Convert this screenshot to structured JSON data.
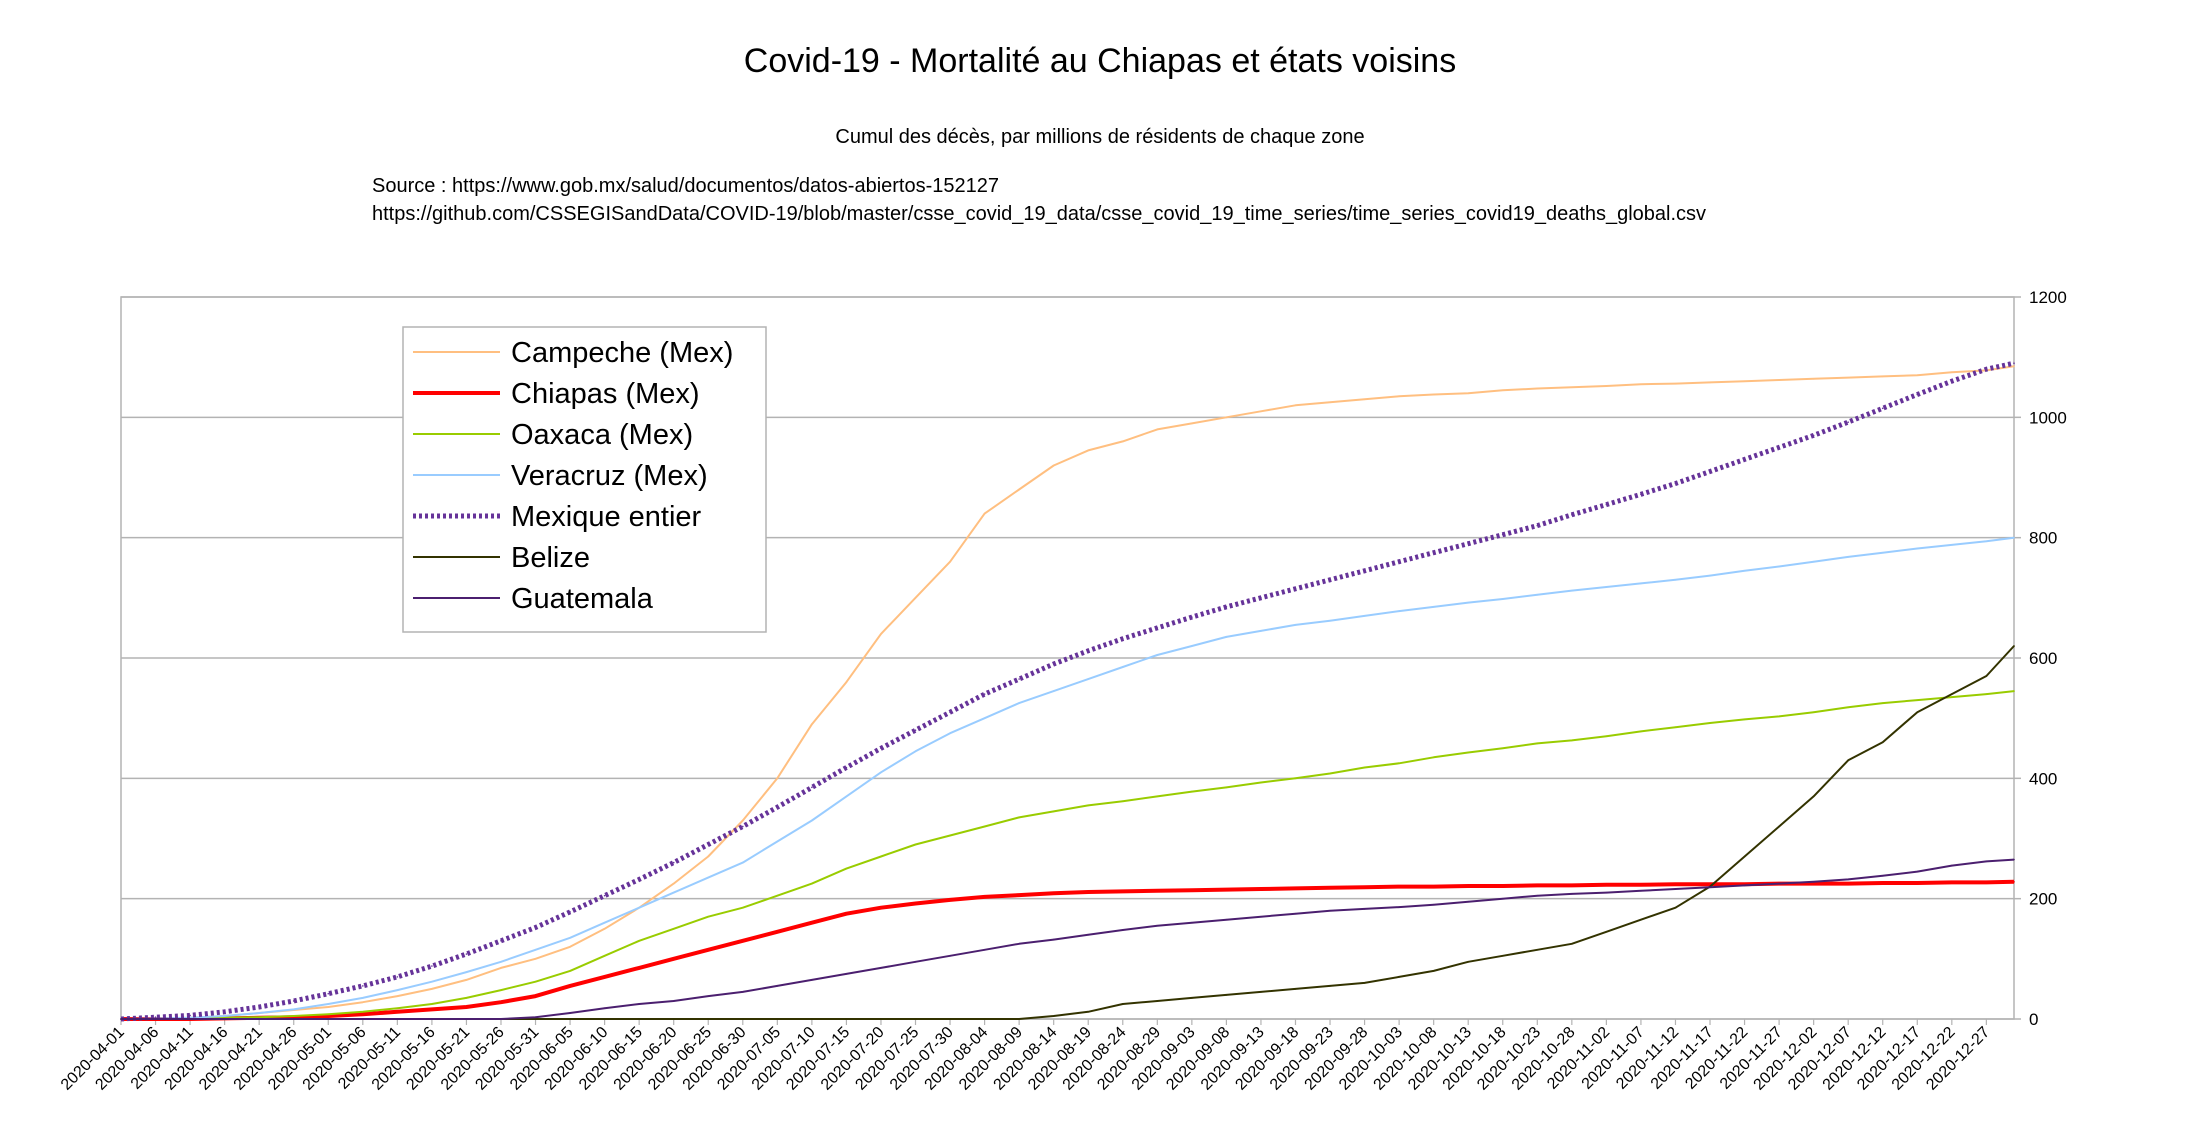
{
  "chart_data": {
    "type": "line",
    "title": "Covid-19 - Mortalité au Chiapas et états voisins",
    "subtitle": "Cumul des décès, par millions de résidents de chaque zone",
    "source_lines": [
      "Source : https://www.gob.mx/salud/documentos/datos-abiertos-152127",
      "https://github.com/CSSEGISandData/COVID-19/blob/master/csse_covid_19_data/csse_covid_19_time_series/time_series_covid19_deaths_global.csv"
    ],
    "xlabel": "",
    "ylabel": "",
    "ylim": [
      0,
      1200
    ],
    "y_ticks": [
      0,
      200,
      400,
      600,
      800,
      1000,
      1200
    ],
    "y_axis_side": "right",
    "grid": true,
    "legend_position": "top-left",
    "x_tick_labels": [
      "2020-04-01",
      "2020-04-06",
      "2020-04-11",
      "2020-04-16",
      "2020-04-21",
      "2020-04-26",
      "2020-05-01",
      "2020-05-06",
      "2020-05-11",
      "2020-05-16",
      "2020-05-21",
      "2020-05-26",
      "2020-05-31",
      "2020-06-05",
      "2020-06-10",
      "2020-06-15",
      "2020-06-20",
      "2020-06-25",
      "2020-06-30",
      "2020-07-05",
      "2020-07-10",
      "2020-07-15",
      "2020-07-20",
      "2020-07-25",
      "2020-07-30",
      "2020-08-04",
      "2020-08-09",
      "2020-08-14",
      "2020-08-19",
      "2020-08-24",
      "2020-08-29",
      "2020-09-03",
      "2020-09-08",
      "2020-09-13",
      "2020-09-18",
      "2020-09-23",
      "2020-09-28",
      "2020-10-03",
      "2020-10-08",
      "2020-10-13",
      "2020-10-18",
      "2020-10-23",
      "2020-10-28",
      "2020-11-02",
      "2020-11-07",
      "2020-11-12",
      "2020-11-17",
      "2020-11-22",
      "2020-11-27",
      "2020-12-02",
      "2020-12-07",
      "2020-12-12",
      "2020-12-17",
      "2020-12-22",
      "2020-12-27"
    ],
    "x": [
      "2020-04-01",
      "2020-04-06",
      "2020-04-11",
      "2020-04-16",
      "2020-04-21",
      "2020-04-26",
      "2020-05-01",
      "2020-05-06",
      "2020-05-11",
      "2020-05-16",
      "2020-05-21",
      "2020-05-26",
      "2020-05-31",
      "2020-06-05",
      "2020-06-10",
      "2020-06-15",
      "2020-06-20",
      "2020-06-25",
      "2020-06-30",
      "2020-07-05",
      "2020-07-10",
      "2020-07-15",
      "2020-07-20",
      "2020-07-25",
      "2020-07-30",
      "2020-08-04",
      "2020-08-09",
      "2020-08-14",
      "2020-08-19",
      "2020-08-24",
      "2020-08-29",
      "2020-09-03",
      "2020-09-08",
      "2020-09-13",
      "2020-09-18",
      "2020-09-23",
      "2020-09-28",
      "2020-10-03",
      "2020-10-08",
      "2020-10-13",
      "2020-10-18",
      "2020-10-23",
      "2020-10-28",
      "2020-11-02",
      "2020-11-07",
      "2020-11-12",
      "2020-11-17",
      "2020-11-22",
      "2020-11-27",
      "2020-12-02",
      "2020-12-07",
      "2020-12-12",
      "2020-12-17",
      "2020-12-22",
      "2020-12-27",
      "2020-12-31"
    ],
    "series": [
      {
        "name": "Campeche (Mex)",
        "color": "#ffbf80",
        "width": 2,
        "dash": "",
        "values": [
          0,
          1,
          2,
          5,
          10,
          15,
          20,
          28,
          38,
          50,
          65,
          85,
          100,
          120,
          150,
          185,
          225,
          270,
          330,
          400,
          490,
          560,
          640,
          700,
          760,
          840,
          880,
          920,
          945,
          960,
          980,
          990,
          1000,
          1010,
          1020,
          1025,
          1030,
          1035,
          1038,
          1040,
          1045,
          1048,
          1050,
          1052,
          1055,
          1056,
          1058,
          1060,
          1062,
          1064,
          1066,
          1068,
          1070,
          1075,
          1078,
          1085
        ]
      },
      {
        "name": "Chiapas (Mex)",
        "color": "#ff0000",
        "width": 4,
        "dash": "",
        "values": [
          0,
          0,
          0,
          1,
          2,
          3,
          5,
          8,
          12,
          16,
          20,
          28,
          38,
          55,
          70,
          85,
          100,
          115,
          130,
          145,
          160,
          175,
          185,
          192,
          198,
          203,
          206,
          209,
          211,
          212,
          213,
          214,
          215,
          216,
          217,
          218,
          219,
          220,
          220,
          221,
          221,
          222,
          222,
          223,
          223,
          224,
          224,
          224,
          225,
          225,
          225,
          226,
          226,
          227,
          227,
          228
        ]
      },
      {
        "name": "Oaxaca (Mex)",
        "color": "#99cc00",
        "width": 2,
        "dash": "",
        "values": [
          0,
          0,
          1,
          2,
          3,
          5,
          8,
          12,
          18,
          25,
          35,
          48,
          62,
          80,
          105,
          130,
          150,
          170,
          185,
          205,
          225,
          250,
          270,
          290,
          305,
          320,
          335,
          345,
          355,
          362,
          370,
          378,
          385,
          393,
          400,
          408,
          418,
          425,
          435,
          443,
          450,
          458,
          463,
          470,
          478,
          485,
          492,
          498,
          503,
          510,
          518,
          525,
          530,
          535,
          540,
          545
        ]
      },
      {
        "name": "Veracruz (Mex)",
        "color": "#99ccff",
        "width": 2,
        "dash": "",
        "values": [
          0,
          1,
          2,
          5,
          10,
          16,
          25,
          35,
          48,
          62,
          78,
          95,
          115,
          135,
          160,
          185,
          210,
          235,
          260,
          295,
          330,
          370,
          410,
          445,
          475,
          500,
          525,
          545,
          565,
          585,
          605,
          620,
          635,
          645,
          655,
          662,
          670,
          678,
          685,
          692,
          698,
          705,
          712,
          718,
          724,
          730,
          737,
          745,
          752,
          760,
          768,
          775,
          782,
          788,
          794,
          800
        ]
      },
      {
        "name": "Mexique entier",
        "color": "#663399",
        "width": 5,
        "dash": "3,3",
        "values": [
          0,
          3,
          6,
          12,
          20,
          30,
          42,
          55,
          70,
          88,
          108,
          130,
          152,
          178,
          205,
          232,
          260,
          290,
          320,
          352,
          385,
          418,
          450,
          480,
          510,
          540,
          565,
          590,
          612,
          632,
          650,
          668,
          685,
          700,
          715,
          730,
          745,
          760,
          775,
          790,
          805,
          820,
          838,
          855,
          872,
          890,
          910,
          930,
          950,
          970,
          992,
          1015,
          1038,
          1060,
          1080,
          1090
        ]
      },
      {
        "name": "Belize",
        "color": "#333300",
        "width": 2,
        "dash": "",
        "values": [
          0,
          0,
          0,
          0,
          0,
          0,
          0,
          0,
          0,
          0,
          0,
          0,
          0,
          0,
          0,
          0,
          0,
          0,
          0,
          0,
          0,
          0,
          0,
          0,
          0,
          0,
          0,
          5,
          12,
          25,
          30,
          35,
          40,
          45,
          50,
          55,
          60,
          70,
          80,
          95,
          105,
          115,
          125,
          145,
          165,
          185,
          220,
          270,
          320,
          370,
          430,
          460,
          510,
          540,
          570,
          620
        ]
      },
      {
        "name": "Guatemala",
        "color": "#4b1f6f",
        "width": 2,
        "dash": "",
        "values": [
          0,
          0,
          0,
          0,
          0,
          0,
          0,
          0,
          0,
          0,
          0,
          0,
          3,
          10,
          18,
          25,
          30,
          38,
          45,
          55,
          65,
          75,
          85,
          95,
          105,
          115,
          125,
          132,
          140,
          148,
          155,
          160,
          165,
          170,
          175,
          180,
          183,
          186,
          190,
          195,
          200,
          205,
          208,
          210,
          213,
          216,
          219,
          222,
          225,
          228,
          232,
          238,
          245,
          255,
          262,
          265
        ]
      }
    ]
  }
}
